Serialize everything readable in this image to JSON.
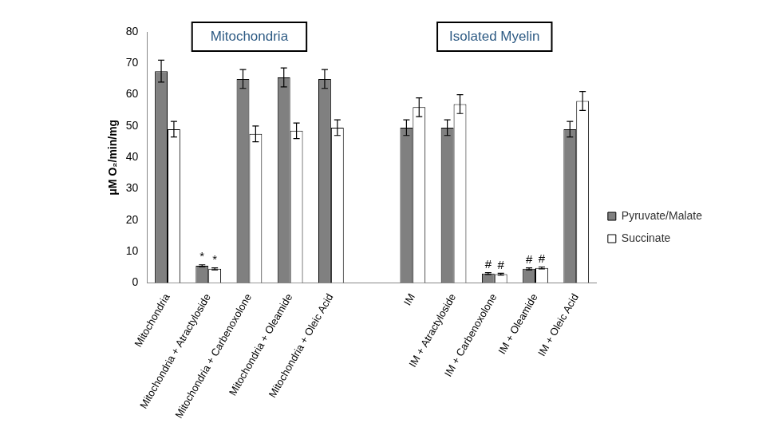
{
  "chart_data": {
    "type": "bar",
    "group_labels": [
      "Mitochondria",
      "Isolated Myelin"
    ],
    "categories": [
      "Mitochondria",
      "Mitochondria + Atractyloside",
      "Mitochondria + Carbenoxolone",
      "Mitochondria + Oleamide",
      "Mitochondria + Oleic Acid",
      null,
      "IM",
      "IM + Atractyloside",
      "IM + Carbenoxolone",
      "IM + Oleamide",
      "IM + Oleic Acid"
    ],
    "series": [
      {
        "name": "Pyruvate/Malate",
        "color": "#808080",
        "values": [
          67.5,
          5.5,
          65,
          65.5,
          65,
          null,
          49.5,
          49.5,
          3,
          4.5,
          49
        ],
        "errors": [
          3.5,
          0.3,
          3,
          3,
          3,
          null,
          2.5,
          2.5,
          0.3,
          0.3,
          2.5
        ],
        "significance": [
          null,
          "*",
          null,
          null,
          null,
          null,
          null,
          null,
          "#",
          "#",
          null
        ]
      },
      {
        "name": "Succinate",
        "color": "#ffffff",
        "values": [
          49,
          4.5,
          47.5,
          48.5,
          49.5,
          null,
          56,
          57,
          2.8,
          4.8,
          58
        ],
        "errors": [
          2.5,
          0.3,
          2.5,
          2.5,
          2.5,
          null,
          3,
          3,
          0.3,
          0.3,
          3
        ],
        "significance": [
          null,
          "*",
          null,
          null,
          null,
          null,
          null,
          null,
          "#",
          "#",
          null
        ]
      }
    ],
    "y_label": "μM O₂/min/mg",
    "ylim": [
      0,
      80
    ],
    "yticks": [
      0,
      10,
      20,
      30,
      40,
      50,
      60,
      70,
      80
    ],
    "grid": false,
    "legend": "right"
  }
}
